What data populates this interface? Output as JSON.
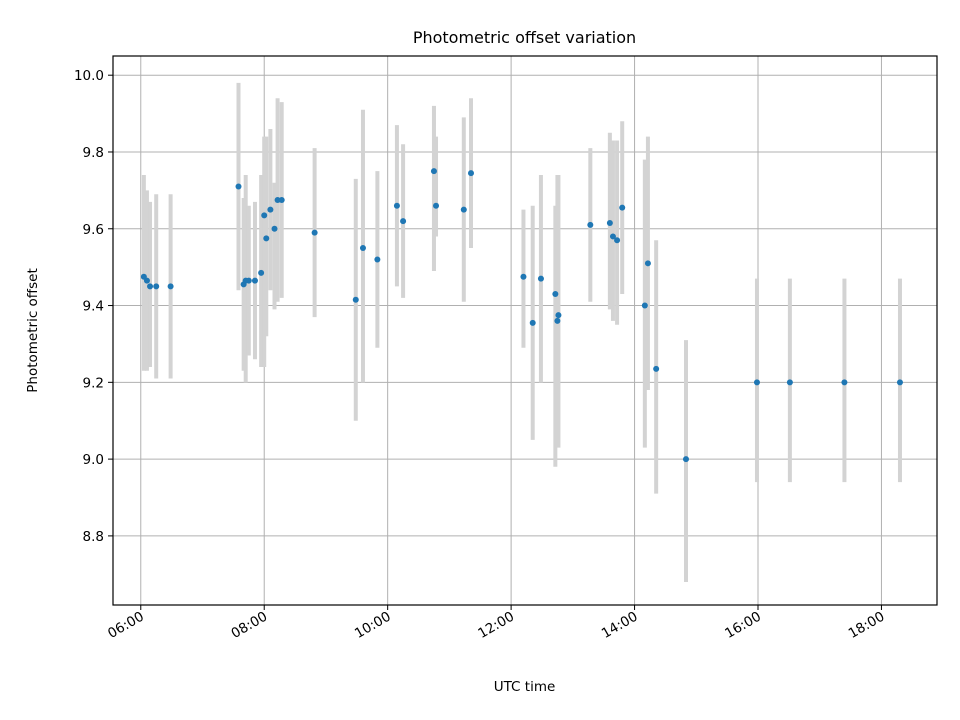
{
  "chart_data": {
    "type": "scatter",
    "title": "Photometric offset variation",
    "xlabel": "UTC time",
    "ylabel": "Photometric offset",
    "xlim": [
      "05:33",
      "18:54"
    ],
    "ylim": [
      8.62,
      10.05
    ],
    "xticks": [
      "06:00",
      "08:00",
      "10:00",
      "12:00",
      "14:00",
      "16:00",
      "18:00"
    ],
    "yticks": [
      8.8,
      9.0,
      9.2,
      9.4,
      9.6,
      9.8,
      10.0
    ],
    "ytick_labels": [
      "8.8",
      "9.0",
      "9.2",
      "9.4",
      "9.6",
      "9.8",
      "10.0"
    ],
    "grid": true,
    "x_is_time": true,
    "colors": {
      "marker": "#1f77b4",
      "errorbar": "#d3d3d3",
      "grid": "#b0b0b0",
      "axes": "#000000"
    },
    "series": [
      {
        "x": [
          "06:03",
          "06:06",
          "06:09",
          "06:15",
          "06:29",
          "07:35",
          "07:40",
          "07:42",
          "07:45",
          "07:51",
          "07:57",
          "08:00",
          "08:02",
          "08:06",
          "08:10",
          "08:13",
          "08:17",
          "08:49",
          "09:29",
          "09:36",
          "09:50",
          "10:09",
          "10:15",
          "10:45",
          "10:47",
          "11:14",
          "11:21",
          "12:12",
          "12:21",
          "12:29",
          "12:43",
          "12:45",
          "12:46",
          "13:17",
          "13:36",
          "13:39",
          "13:43",
          "13:48",
          "14:10",
          "14:13",
          "14:21",
          "14:50",
          "15:59",
          "16:31",
          "17:24",
          "18:18"
        ],
        "y": [
          9.475,
          9.465,
          9.45,
          9.45,
          9.45,
          9.71,
          9.455,
          9.465,
          9.465,
          9.465,
          9.485,
          9.635,
          9.575,
          9.65,
          9.6,
          9.675,
          9.675,
          9.59,
          9.415,
          9.55,
          9.52,
          9.66,
          9.62,
          9.75,
          9.66,
          9.65,
          9.745,
          9.475,
          9.355,
          9.47,
          9.43,
          9.36,
          9.375,
          9.61,
          9.615,
          9.58,
          9.57,
          9.655,
          9.4,
          9.51,
          9.235,
          9.0,
          9.2,
          9.2,
          9.2,
          9.2
        ],
        "err_low": [
          9.23,
          9.23,
          9.24,
          9.21,
          9.21,
          9.44,
          9.23,
          9.2,
          9.27,
          9.26,
          9.24,
          9.24,
          9.32,
          9.44,
          9.39,
          9.41,
          9.42,
          9.37,
          9.1,
          9.2,
          9.29,
          9.45,
          9.42,
          9.49,
          9.58,
          9.41,
          9.55,
          9.29,
          9.05,
          9.2,
          8.98,
          9.21,
          9.03,
          9.41,
          9.39,
          9.36,
          9.35,
          9.43,
          9.03,
          9.18,
          8.91,
          8.68,
          8.94,
          8.94,
          8.94,
          8.94
        ],
        "err_high": [
          9.74,
          9.7,
          9.67,
          9.69,
          9.69,
          9.98,
          9.68,
          9.74,
          9.66,
          9.67,
          9.74,
          9.84,
          9.84,
          9.86,
          9.72,
          9.94,
          9.93,
          9.81,
          9.73,
          9.91,
          9.75,
          9.87,
          9.82,
          9.92,
          9.84,
          9.89,
          9.94,
          9.65,
          9.66,
          9.74,
          9.66,
          9.74,
          9.74,
          9.81,
          9.85,
          9.83,
          9.83,
          9.88,
          9.78,
          9.84,
          9.57,
          9.31,
          9.47,
          9.47,
          9.47,
          9.47
        ]
      }
    ]
  }
}
